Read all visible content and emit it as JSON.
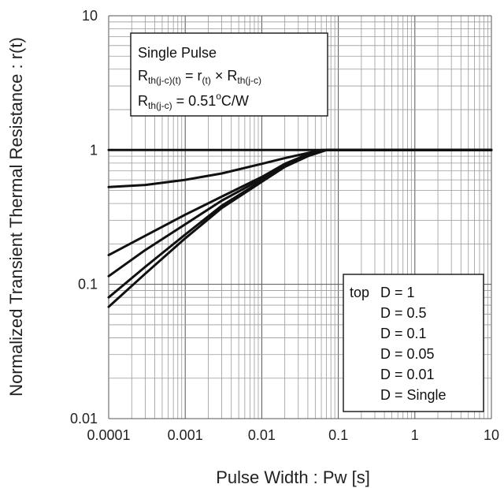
{
  "chart_data": {
    "type": "line",
    "xscale": "log",
    "yscale": "log",
    "xlim": [
      0.0001,
      10
    ],
    "ylim": [
      0.01,
      10
    ],
    "xlabel": "Pulse Width : Pw [s]",
    "ylabel": "Normalized Transient Thermal Resistance : r(t)",
    "x_tick_labels": [
      "0.0001",
      "0.001",
      "0.01",
      "0.1",
      "1",
      "10"
    ],
    "y_tick_labels": [
      "0.01",
      "0.1",
      "1",
      "10"
    ],
    "grid": true,
    "annotation": {
      "line1": "Single Pulse",
      "line2_R": "R",
      "line2_sub1": "th(j-c)(t)",
      "line2_mid": " = r",
      "line2_sub2": "(t)",
      "line2_x": " × R",
      "line2_sub3": "th(j-c)",
      "line3_R": "R",
      "line3_sub": "th(j-c)",
      "line3_val": " = 0.51",
      "line3_deg": "o",
      "line3_unit": "C/W"
    },
    "legend": {
      "position": "bottom-right",
      "prefix": "top",
      "entries": [
        "D = 1",
        "D = 0.5",
        "D = 0.1",
        "D = 0.05",
        "D = 0.01",
        "D = Single"
      ]
    },
    "series": [
      {
        "x": [
          0.0001,
          10
        ],
        "y": [
          1,
          1
        ]
      },
      {
        "x": [
          0.0001,
          0.0003,
          0.001,
          0.003,
          0.01,
          0.02,
          0.04,
          0.06,
          10
        ],
        "y": [
          0.53,
          0.55,
          0.6,
          0.67,
          0.79,
          0.87,
          0.95,
          1.0,
          1.0
        ]
      },
      {
        "x": [
          0.0001,
          0.0003,
          0.001,
          0.003,
          0.01,
          0.02,
          0.04,
          0.07,
          10
        ],
        "y": [
          0.165,
          0.23,
          0.33,
          0.45,
          0.63,
          0.79,
          0.93,
          1.0,
          1.0
        ]
      },
      {
        "x": [
          0.0001,
          0.0003,
          0.001,
          0.003,
          0.01,
          0.02,
          0.04,
          0.07,
          10
        ],
        "y": [
          0.115,
          0.18,
          0.28,
          0.42,
          0.61,
          0.77,
          0.92,
          1.0,
          1.0
        ]
      },
      {
        "x": [
          0.0001,
          0.0003,
          0.001,
          0.003,
          0.01,
          0.02,
          0.04,
          0.07,
          10
        ],
        "y": [
          0.08,
          0.135,
          0.235,
          0.385,
          0.59,
          0.76,
          0.91,
          1.0,
          1.0
        ]
      },
      {
        "x": [
          0.0001,
          0.0003,
          0.001,
          0.003,
          0.01,
          0.02,
          0.04,
          0.07,
          10
        ],
        "y": [
          0.068,
          0.12,
          0.22,
          0.37,
          0.58,
          0.75,
          0.9,
          1.0,
          1.0
        ]
      }
    ]
  }
}
